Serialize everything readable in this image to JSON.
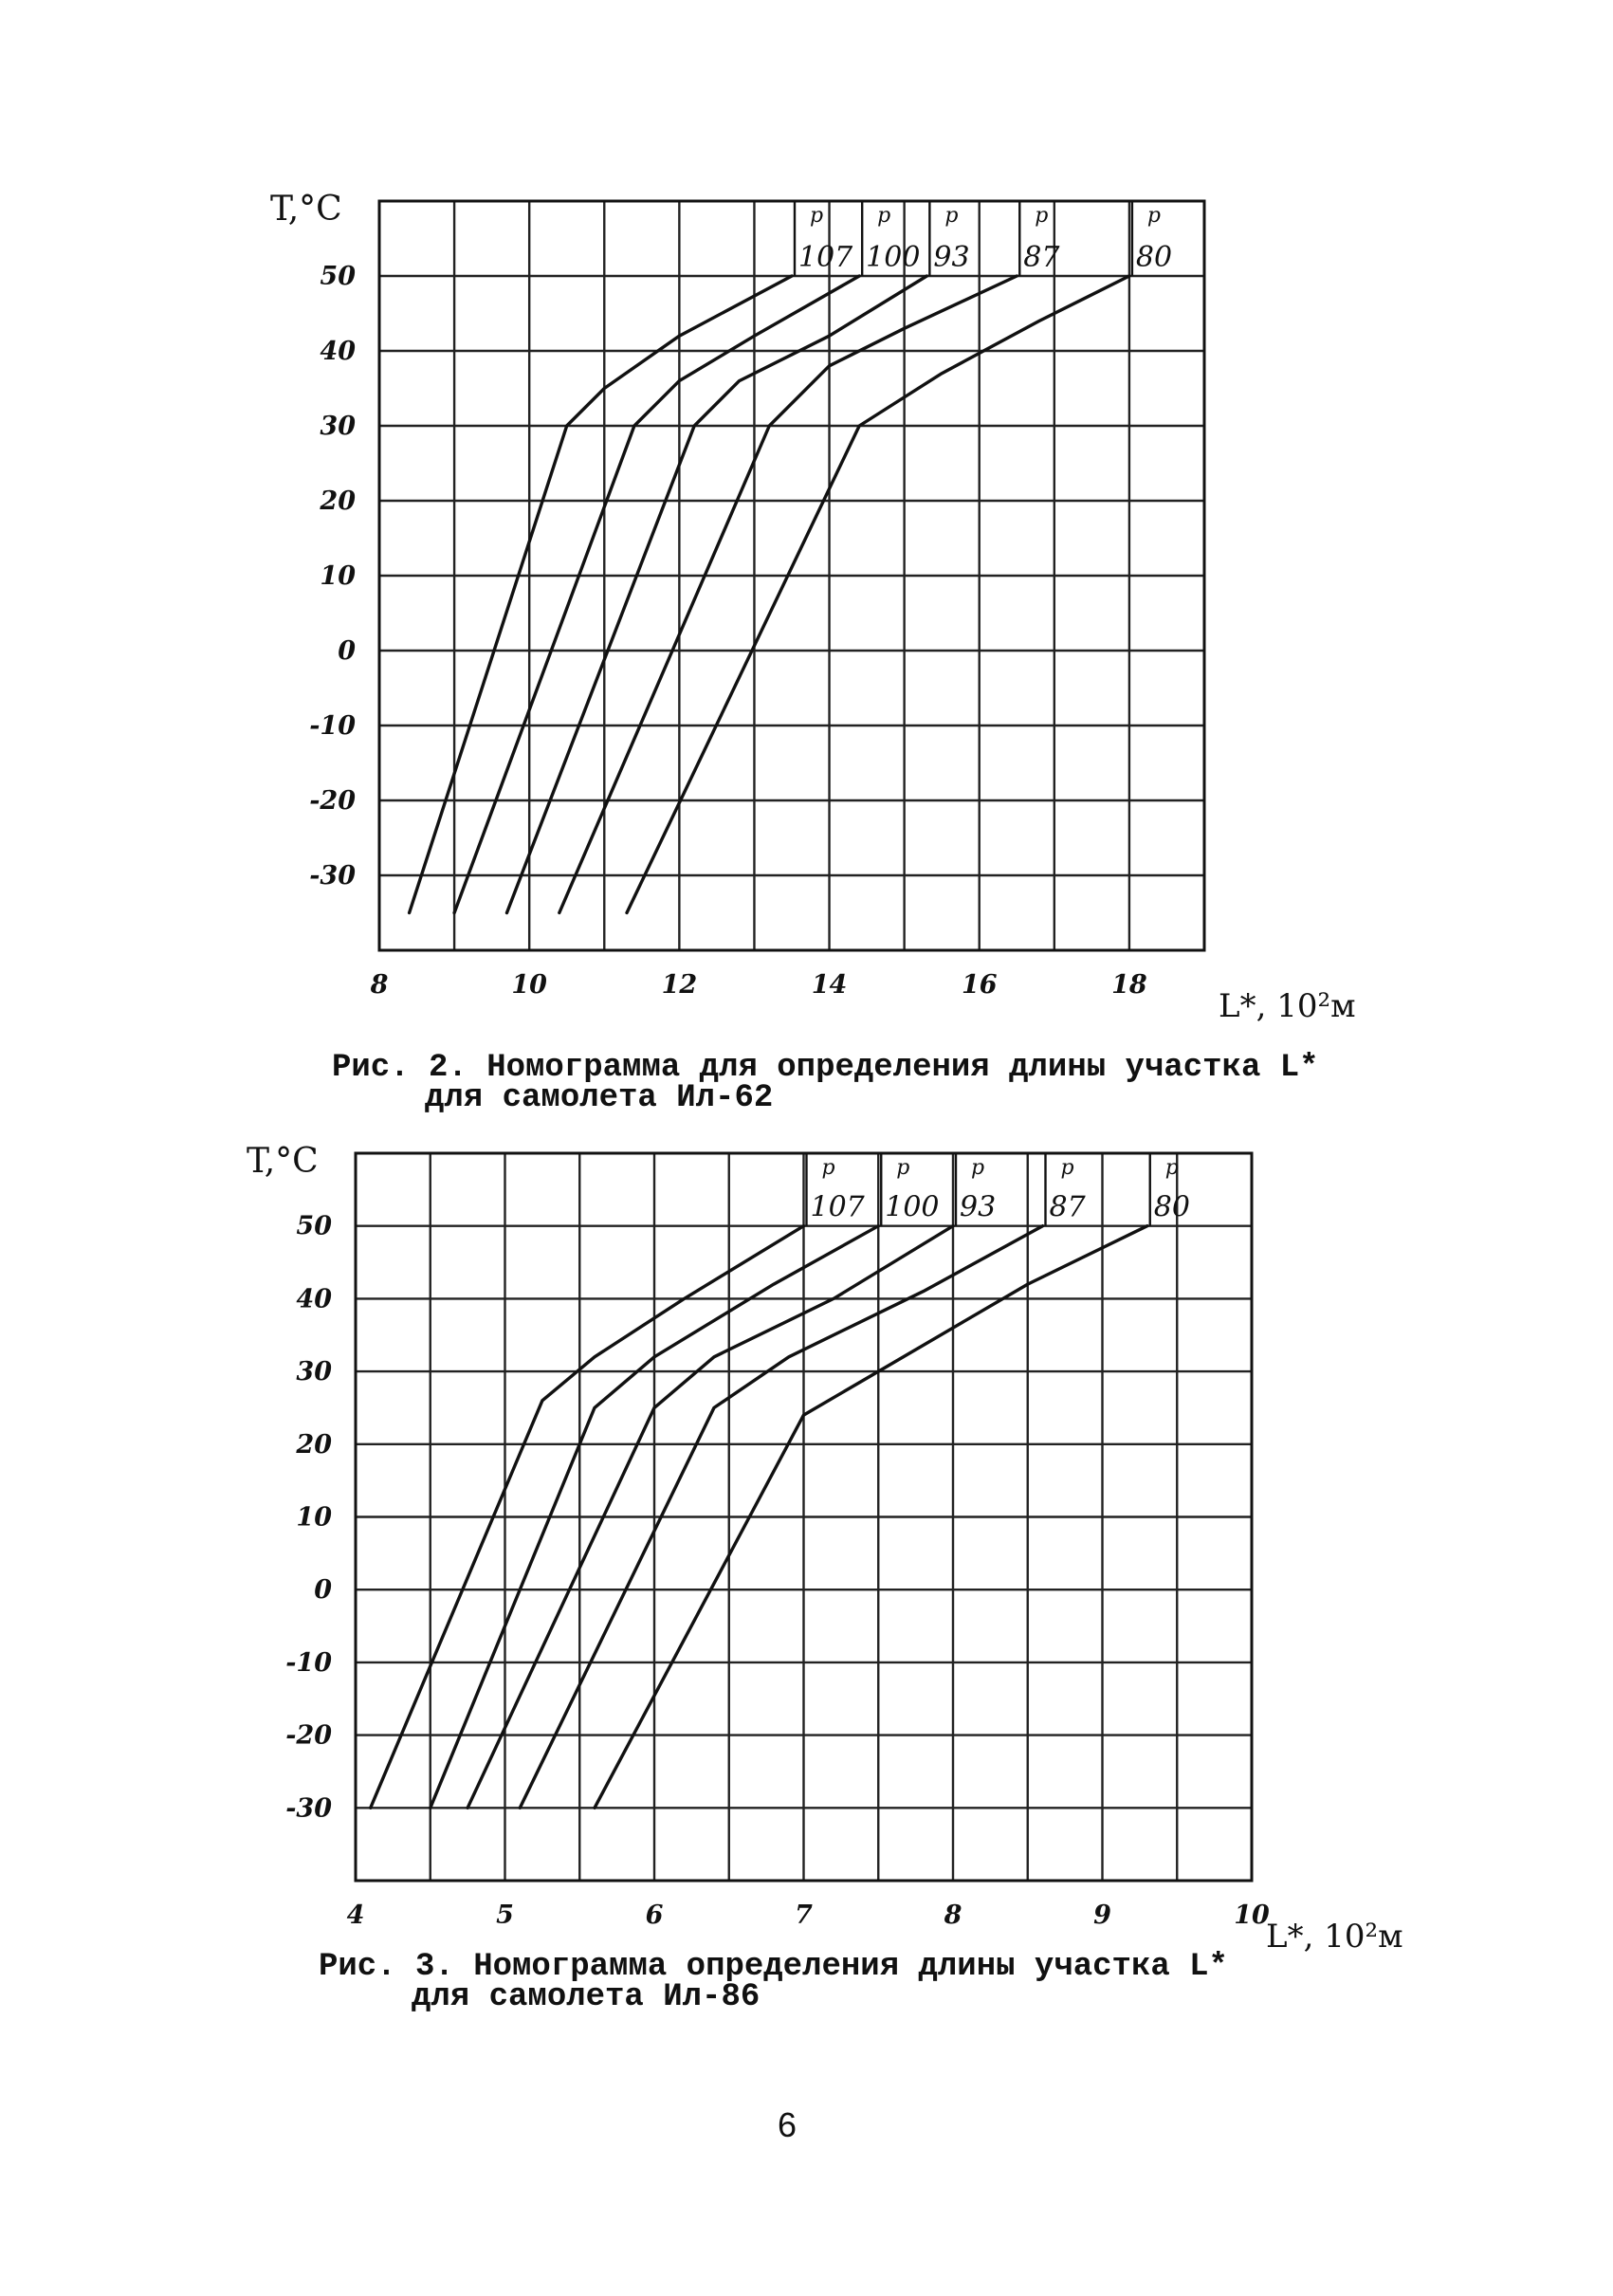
{
  "chart_data": [
    {
      "type": "line",
      "ylabel": "T,°C",
      "xlabel": "L*, 10²м",
      "xlim": [
        8,
        19
      ],
      "ylim": [
        -40,
        60
      ],
      "xticks": [
        8,
        10,
        12,
        14,
        16,
        18
      ],
      "yticks": [
        50,
        40,
        30,
        20,
        10,
        0,
        -10,
        -20,
        -30
      ],
      "grid": true,
      "parameter_label": "p",
      "series": [
        {
          "name": "107",
          "points": [
            [
              8.4,
              -35
            ],
            [
              10.5,
              30
            ],
            [
              11.0,
              35
            ],
            [
              12.0,
              42
            ],
            [
              13.5,
              50
            ]
          ]
        },
        {
          "name": "100",
          "points": [
            [
              9.0,
              -35
            ],
            [
              11.4,
              30
            ],
            [
              12.0,
              36
            ],
            [
              13.0,
              42
            ],
            [
              14.4,
              50
            ]
          ]
        },
        {
          "name": "93",
          "points": [
            [
              9.7,
              -35
            ],
            [
              12.2,
              30
            ],
            [
              12.8,
              36
            ],
            [
              14.0,
              42
            ],
            [
              15.3,
              50
            ]
          ]
        },
        {
          "name": "87",
          "points": [
            [
              10.4,
              -35
            ],
            [
              13.2,
              30
            ],
            [
              14.0,
              38
            ],
            [
              15.0,
              43
            ],
            [
              16.5,
              50
            ]
          ]
        },
        {
          "name": "80",
          "points": [
            [
              11.3,
              -35
            ],
            [
              14.4,
              30
            ],
            [
              15.5,
              37
            ],
            [
              16.8,
              44
            ],
            [
              18.0,
              50
            ]
          ]
        }
      ],
      "caption": {
        "line1": "Рис. 2. Номограмма для определения длины участка L*",
        "line2": "для самолета Ил-62"
      }
    },
    {
      "type": "line",
      "ylabel": "T,°C",
      "xlabel": "L*, 10²м",
      "xlim": [
        4,
        10
      ],
      "ylim": [
        -40,
        60
      ],
      "xticks": [
        4,
        5,
        6,
        7,
        8,
        9,
        10
      ],
      "yticks": [
        50,
        40,
        30,
        20,
        10,
        0,
        -10,
        -20,
        -30
      ],
      "grid": true,
      "parameter_label": "p",
      "series": [
        {
          "name": "107",
          "points": [
            [
              4.1,
              -30
            ],
            [
              5.25,
              26
            ],
            [
              5.6,
              32
            ],
            [
              6.2,
              40
            ],
            [
              7.0,
              50
            ]
          ]
        },
        {
          "name": "100",
          "points": [
            [
              4.5,
              -30
            ],
            [
              5.6,
              25
            ],
            [
              6.0,
              32
            ],
            [
              6.8,
              42
            ],
            [
              7.5,
              50
            ]
          ]
        },
        {
          "name": "93",
          "points": [
            [
              4.75,
              -30
            ],
            [
              6.0,
              25
            ],
            [
              6.4,
              32
            ],
            [
              7.2,
              40
            ],
            [
              8.0,
              50
            ]
          ]
        },
        {
          "name": "87",
          "points": [
            [
              5.1,
              -30
            ],
            [
              6.4,
              25
            ],
            [
              6.9,
              32
            ],
            [
              7.8,
              41
            ],
            [
              8.6,
              50
            ]
          ]
        },
        {
          "name": "80",
          "points": [
            [
              5.6,
              -30
            ],
            [
              7.0,
              24
            ],
            [
              7.5,
              30
            ],
            [
              8.5,
              42
            ],
            [
              9.3,
              50
            ]
          ]
        }
      ],
      "caption": {
        "line1": "Рис. 3. Номограмма определения длины участка L*",
        "line2": "для самолета Ил-86"
      }
    }
  ],
  "page_number": "6"
}
